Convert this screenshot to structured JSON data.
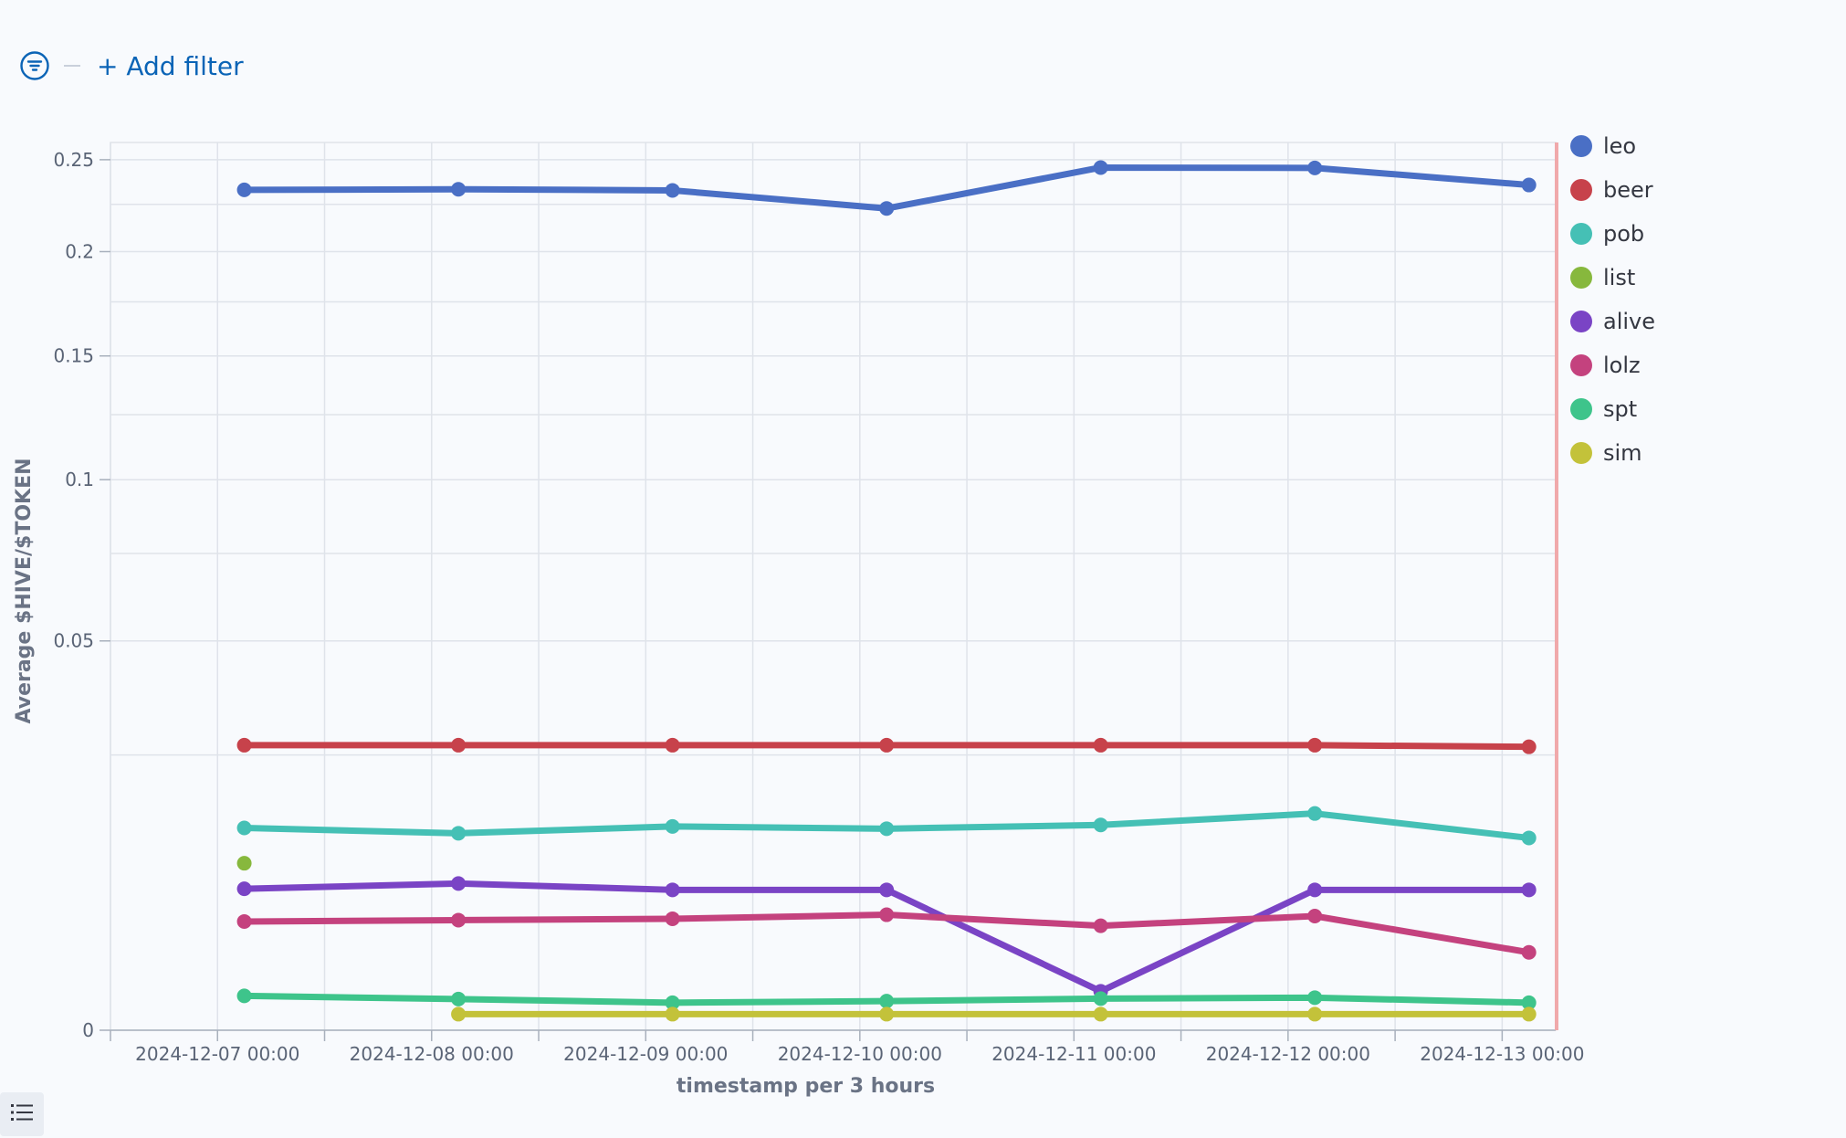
{
  "filter_bar": {
    "add_filter_label": "+ Add filter",
    "icon": "filter-icon"
  },
  "legend_toggle": {
    "icon": "list-icon"
  },
  "chart_data": {
    "type": "line",
    "xlabel": "timestamp per 3 hours",
    "ylabel": "Average $HIVE/$TOKEN",
    "x_ticks": [
      "2024-12-07 00:00",
      "2024-12-08 00:00",
      "2024-12-09 00:00",
      "2024-12-10 00:00",
      "2024-12-11 00:00",
      "2024-12-12 00:00",
      "2024-12-13 00:00"
    ],
    "x_range": [
      "2024-12-06 12:00",
      "2024-12-13 06:00"
    ],
    "x_scale": "time",
    "y_scale": "sqrt",
    "y_ticks": [
      0,
      0.05,
      0.1,
      0.15,
      0.2,
      0.25
    ],
    "y_tick_labels": [
      "0",
      "0.05",
      "0.1",
      "0.15",
      "0.2",
      "0.25"
    ],
    "ylim": [
      0,
      0.26
    ],
    "grid": true,
    "legend_position": "right",
    "x": [
      "2024-12-07 03:00",
      "2024-12-08 03:00",
      "2024-12-09 03:00",
      "2024-12-10 03:00",
      "2024-12-11 03:00",
      "2024-12-12 03:00",
      "2024-12-13 03:00"
    ],
    "series": [
      {
        "name": "leo",
        "color": "#4a6fc5",
        "values": [
          0.233,
          0.2333,
          0.2327,
          0.2228,
          0.2455,
          0.2453,
          0.2357
        ]
      },
      {
        "name": "beer",
        "color": "#c7424b",
        "values": [
          0.0268,
          0.0268,
          0.0268,
          0.0268,
          0.0268,
          0.0268,
          0.0265
        ]
      },
      {
        "name": "pob",
        "color": "#45c0b5",
        "values": [
          0.0135,
          0.0128,
          0.0137,
          0.0134,
          0.0139,
          0.0155,
          0.0122
        ]
      },
      {
        "name": "list",
        "color": "#87b83d",
        "values": [
          0.0092,
          null,
          null,
          null,
          null,
          null,
          null
        ]
      },
      {
        "name": "alive",
        "color": "#7a44c5",
        "values": [
          0.0066,
          0.0071,
          0.0065,
          0.0065,
          0.0005,
          0.0065,
          0.0065
        ]
      },
      {
        "name": "lolz",
        "color": "#c4427e",
        "values": [
          0.0039,
          0.004,
          0.0041,
          0.0044,
          0.0036,
          0.0043,
          0.002
        ]
      },
      {
        "name": "spt",
        "color": "#3ec48b",
        "values": [
          0.00039,
          0.00032,
          0.00025,
          0.00028,
          0.00033,
          0.00035,
          0.00025
        ]
      },
      {
        "name": "sim",
        "color": "#c3c23a",
        "values": [
          null,
          8.5e-05,
          8.5e-05,
          8.5e-05,
          8.5e-05,
          8.5e-05,
          8.5e-05
        ]
      }
    ]
  }
}
